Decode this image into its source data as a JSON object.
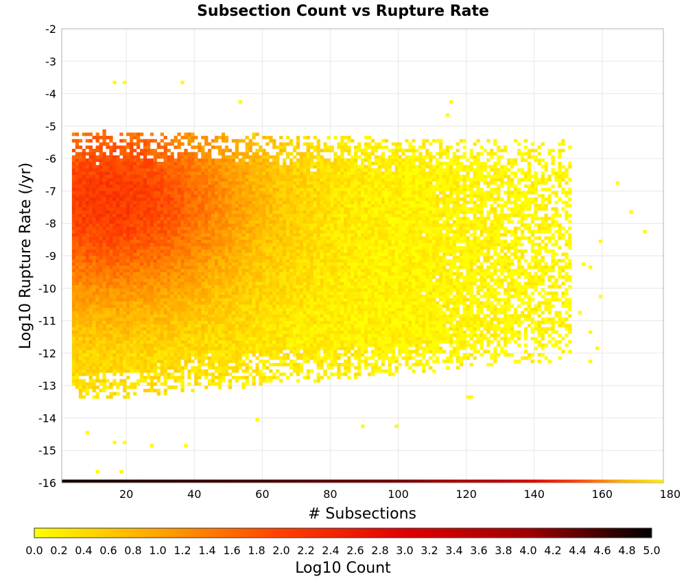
{
  "chart_data": {
    "type": "heatmap",
    "title": "Subsection Count vs Rupture Rate",
    "xlabel": "# Subsections",
    "ylabel": "Log10 Rupture Rate (/yr)",
    "xlim": [
      1,
      178
    ],
    "ylim": [
      -16,
      -2
    ],
    "x_ticks": [
      20,
      40,
      60,
      80,
      100,
      120,
      140,
      160,
      180
    ],
    "y_ticks": [
      -2,
      -3,
      -4,
      -5,
      -6,
      -7,
      -8,
      -9,
      -10,
      -11,
      -12,
      -13,
      -14,
      -15,
      -16
    ],
    "grid": true,
    "colorbar": {
      "label": "Log10 Count",
      "min": 0.0,
      "max": 5.0,
      "ticks": [
        "0.0",
        "0.2",
        "0.4",
        "0.6",
        "0.8",
        "1.0",
        "1.2",
        "1.4",
        "1.6",
        "1.8",
        "2.0",
        "2.2",
        "2.4",
        "2.6",
        "2.8",
        "3.0",
        "3.2",
        "3.4",
        "3.6",
        "3.8",
        "4.0",
        "4.2",
        "4.4",
        "4.6",
        "4.8",
        "5.0"
      ],
      "colors": [
        "#ffff00",
        "#ffa500",
        "#ff4000",
        "#e00000",
        "#a00000",
        "#000000"
      ],
      "placement": "bottom"
    },
    "cell_size": {
      "dx": 1,
      "dy": 0.1
    },
    "value_description": "log10 of count per (subsection count, log10 rate) cell",
    "core_density": {
      "x_range": [
        4,
        150
      ],
      "y_range": [
        -13.5,
        -5
      ],
      "peak": {
        "x": 15,
        "y": -7.3,
        "log10_count": 1.9
      },
      "typical_log10_count": [
        0.3,
        1.5
      ]
    },
    "floor_row": {
      "y": -16.0,
      "x_range": [
        1,
        177
      ],
      "log10_count_by_x": [
        [
          1,
          4.9
        ],
        [
          60,
          4.6
        ],
        [
          100,
          4.3
        ],
        [
          130,
          3.6
        ],
        [
          150,
          2.2
        ],
        [
          165,
          0.9
        ],
        [
          177,
          0.2
        ]
      ]
    },
    "outliers": [
      {
        "x": 16,
        "y": -3.7
      },
      {
        "x": 19,
        "y": -3.7
      },
      {
        "x": 36,
        "y": -3.7
      },
      {
        "x": 53,
        "y": -4.3
      },
      {
        "x": 115,
        "y": -4.3
      },
      {
        "x": 114,
        "y": -4.7
      },
      {
        "x": 164,
        "y": -6.8
      },
      {
        "x": 168,
        "y": -7.7
      },
      {
        "x": 172,
        "y": -8.3
      },
      {
        "x": 159,
        "y": -8.6
      },
      {
        "x": 150,
        "y": -8.4
      },
      {
        "x": 154,
        "y": -9.3
      },
      {
        "x": 156,
        "y": -9.4
      },
      {
        "x": 159,
        "y": -10.3
      },
      {
        "x": 153,
        "y": -10.8
      },
      {
        "x": 150,
        "y": -11.4
      },
      {
        "x": 156,
        "y": -11.4
      },
      {
        "x": 142,
        "y": -11.4
      },
      {
        "x": 158,
        "y": -11.9
      },
      {
        "x": 156,
        "y": -12.3
      },
      {
        "x": 150,
        "y": -12.0
      },
      {
        "x": 120,
        "y": -13.4
      },
      {
        "x": 121,
        "y": -13.4
      },
      {
        "x": 8,
        "y": -14.5
      },
      {
        "x": 16,
        "y": -14.8
      },
      {
        "x": 19,
        "y": -14.8
      },
      {
        "x": 27,
        "y": -14.9
      },
      {
        "x": 37,
        "y": -14.9
      },
      {
        "x": 58,
        "y": -14.1
      },
      {
        "x": 89,
        "y": -14.3
      },
      {
        "x": 99,
        "y": -14.3
      },
      {
        "x": 11,
        "y": -15.7
      },
      {
        "x": 18,
        "y": -15.7
      }
    ]
  }
}
